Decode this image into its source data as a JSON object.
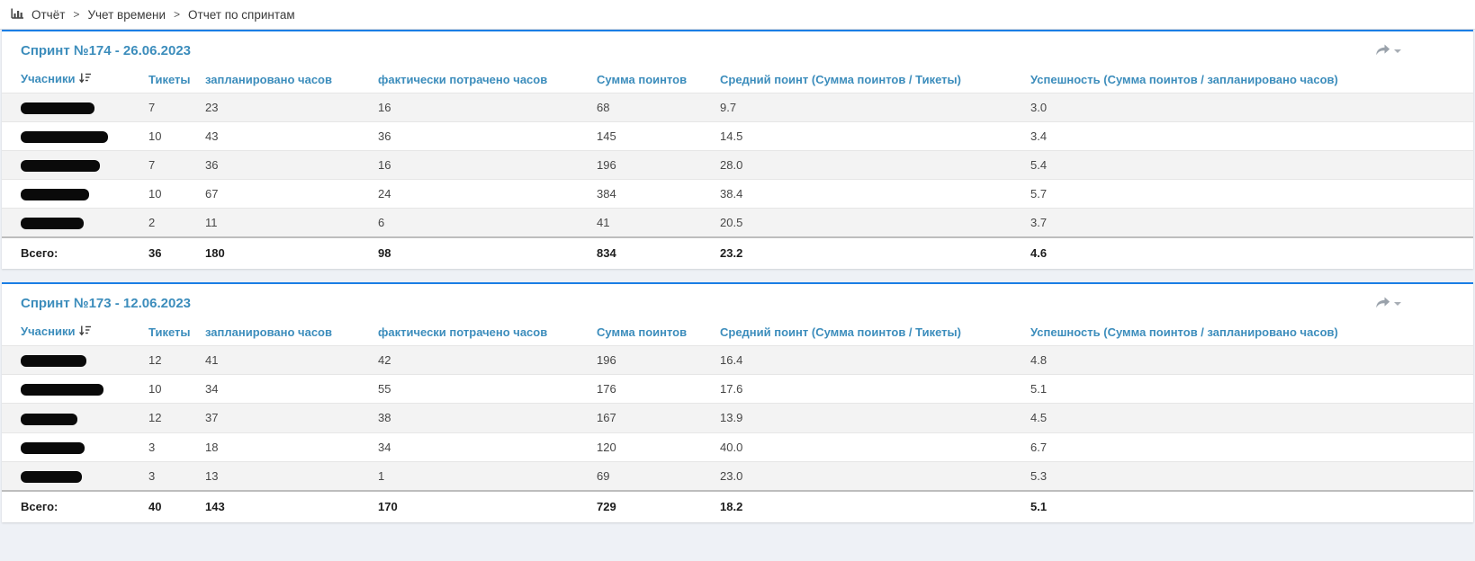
{
  "breadcrumb": {
    "icon": "bar-chart-icon",
    "separator": ">",
    "items": [
      "Отчёт",
      "Учет времени",
      "Отчет по спринтам"
    ]
  },
  "table_columns": [
    "Учасники",
    "Тикеты",
    "запланировано часов",
    "фактически потрачено часов",
    "Сумма поинтов",
    "Средний поинт (Сумма поинтов / Тикеты)",
    "Успешность (Сумма поинтов / запланировано часов)"
  ],
  "totals_label": "Всего:",
  "panels": [
    {
      "title": "Спринт №174 - 26.06.2023",
      "rows": [
        {
          "redact_width": 82,
          "tickets": "7",
          "planned": "23",
          "spent": "16",
          "points": "68",
          "avg": "9.7",
          "success": "3.0"
        },
        {
          "redact_width": 97,
          "tickets": "10",
          "planned": "43",
          "spent": "36",
          "points": "145",
          "avg": "14.5",
          "success": "3.4"
        },
        {
          "redact_width": 88,
          "tickets": "7",
          "planned": "36",
          "spent": "16",
          "points": "196",
          "avg": "28.0",
          "success": "5.4"
        },
        {
          "redact_width": 76,
          "tickets": "10",
          "planned": "67",
          "spent": "24",
          "points": "384",
          "avg": "38.4",
          "success": "5.7"
        },
        {
          "redact_width": 70,
          "tickets": "2",
          "planned": "11",
          "spent": "6",
          "points": "41",
          "avg": "20.5",
          "success": "3.7"
        }
      ],
      "totals": {
        "tickets": "36",
        "planned": "180",
        "spent": "98",
        "points": "834",
        "avg": "23.2",
        "success": "4.6"
      }
    },
    {
      "title": "Спринт №173 - 12.06.2023",
      "rows": [
        {
          "redact_width": 73,
          "tickets": "12",
          "planned": "41",
          "spent": "42",
          "points": "196",
          "avg": "16.4",
          "success": "4.8"
        },
        {
          "redact_width": 92,
          "tickets": "10",
          "planned": "34",
          "spent": "55",
          "points": "176",
          "avg": "17.6",
          "success": "5.1"
        },
        {
          "redact_width": 63,
          "tickets": "12",
          "planned": "37",
          "spent": "38",
          "points": "167",
          "avg": "13.9",
          "success": "4.5"
        },
        {
          "redact_width": 71,
          "tickets": "3",
          "planned": "18",
          "spent": "34",
          "points": "120",
          "avg": "40.0",
          "success": "6.7"
        },
        {
          "redact_width": 68,
          "tickets": "3",
          "planned": "13",
          "spent": "1",
          "points": "69",
          "avg": "23.0",
          "success": "5.3"
        }
      ],
      "totals": {
        "tickets": "40",
        "planned": "143",
        "spent": "170",
        "points": "729",
        "avg": "18.2",
        "success": "5.1"
      }
    }
  ],
  "colors": {
    "accent_blue": "#3c8dbc",
    "panel_top_border": "#1a7ee5",
    "page_background": "#eef1f6",
    "row_stripe": "#f3f3f3"
  }
}
